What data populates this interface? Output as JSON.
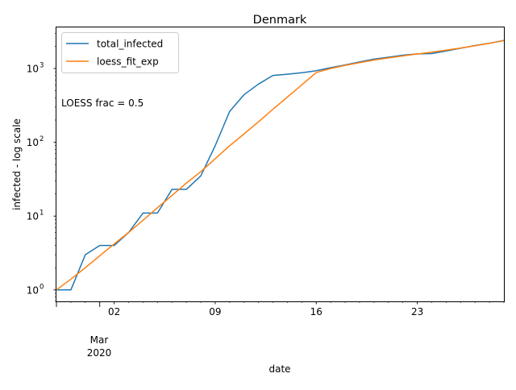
{
  "chart_data": {
    "type": "line",
    "title": "Denmark",
    "xlabel": "date",
    "ylabel": "infected - log scale",
    "yscale": "log",
    "ylim": [
      0.7,
      3600
    ],
    "xlim": [
      "2020-02-27",
      "2020-03-29"
    ],
    "y_ticks": [
      {
        "value": 1,
        "label_base": "10",
        "label_exp": "0"
      },
      {
        "value": 10,
        "label_base": "10",
        "label_exp": "1"
      },
      {
        "value": 100,
        "label_base": "10",
        "label_exp": "2"
      },
      {
        "value": 1000,
        "label_base": "10",
        "label_exp": "3"
      }
    ],
    "x_major_ticks": [
      {
        "date": "2020-03-02",
        "label": "02"
      },
      {
        "date": "2020-03-09",
        "label": "09"
      },
      {
        "date": "2020-03-16",
        "label": "16"
      },
      {
        "date": "2020-03-23",
        "label": "23"
      }
    ],
    "x_secondary_label": {
      "month": "Mar",
      "year": "2020"
    },
    "annotation": "LOESS frac = 0.5",
    "grid": false,
    "legend_position": "upper-left",
    "series": [
      {
        "name": "total_infected",
        "color": "#1f77b4",
        "points": [
          [
            "2020-02-27",
            1
          ],
          [
            "2020-02-28",
            1
          ],
          [
            "2020-02-29",
            3
          ],
          [
            "2020-03-01",
            4
          ],
          [
            "2020-03-02",
            4
          ],
          [
            "2020-03-03",
            6
          ],
          [
            "2020-03-04",
            11
          ],
          [
            "2020-03-05",
            11
          ],
          [
            "2020-03-06",
            23
          ],
          [
            "2020-03-07",
            23
          ],
          [
            "2020-03-08",
            35
          ],
          [
            "2020-03-09",
            90
          ],
          [
            "2020-03-10",
            262
          ],
          [
            "2020-03-11",
            442
          ],
          [
            "2020-03-12",
            615
          ],
          [
            "2020-03-13",
            804
          ],
          [
            "2020-03-14",
            836
          ],
          [
            "2020-03-15",
            875
          ],
          [
            "2020-03-16",
            932
          ],
          [
            "2020-03-17",
            1024
          ],
          [
            "2020-03-18",
            1115
          ],
          [
            "2020-03-19",
            1225
          ],
          [
            "2020-03-20",
            1337
          ],
          [
            "2020-03-21",
            1420
          ],
          [
            "2020-03-22",
            1514
          ],
          [
            "2020-03-23",
            1577
          ],
          [
            "2020-03-24",
            1591
          ],
          [
            "2020-03-25",
            1724
          ],
          [
            "2020-03-26",
            1877
          ],
          [
            "2020-03-27",
            2046
          ],
          [
            "2020-03-28",
            2201
          ],
          [
            "2020-03-29",
            2395
          ]
        ]
      },
      {
        "name": "loess_fit_exp",
        "color": "#ff7f0e",
        "points": [
          [
            "2020-02-27",
            1
          ],
          [
            "2020-02-28",
            1.4
          ],
          [
            "2020-02-29",
            2.0
          ],
          [
            "2020-03-01",
            2.9
          ],
          [
            "2020-03-02",
            4.2
          ],
          [
            "2020-03-03",
            6.0
          ],
          [
            "2020-03-04",
            8.8
          ],
          [
            "2020-03-05",
            13
          ],
          [
            "2020-03-06",
            19
          ],
          [
            "2020-03-07",
            28
          ],
          [
            "2020-03-08",
            40
          ],
          [
            "2020-03-09",
            60
          ],
          [
            "2020-03-10",
            90
          ],
          [
            "2020-03-11",
            130
          ],
          [
            "2020-03-12",
            190
          ],
          [
            "2020-03-13",
            280
          ],
          [
            "2020-03-14",
            410
          ],
          [
            "2020-03-15",
            600
          ],
          [
            "2020-03-16",
            880
          ],
          [
            "2020-03-17",
            1000
          ],
          [
            "2020-03-18",
            1100
          ],
          [
            "2020-03-19",
            1200
          ],
          [
            "2020-03-20",
            1300
          ],
          [
            "2020-03-21",
            1390
          ],
          [
            "2020-03-22",
            1480
          ],
          [
            "2020-03-23",
            1570
          ],
          [
            "2020-03-24",
            1660
          ],
          [
            "2020-03-25",
            1770
          ],
          [
            "2020-03-26",
            1890
          ],
          [
            "2020-03-27",
            2030
          ],
          [
            "2020-03-28",
            2190
          ],
          [
            "2020-03-29",
            2390
          ]
        ]
      }
    ]
  }
}
